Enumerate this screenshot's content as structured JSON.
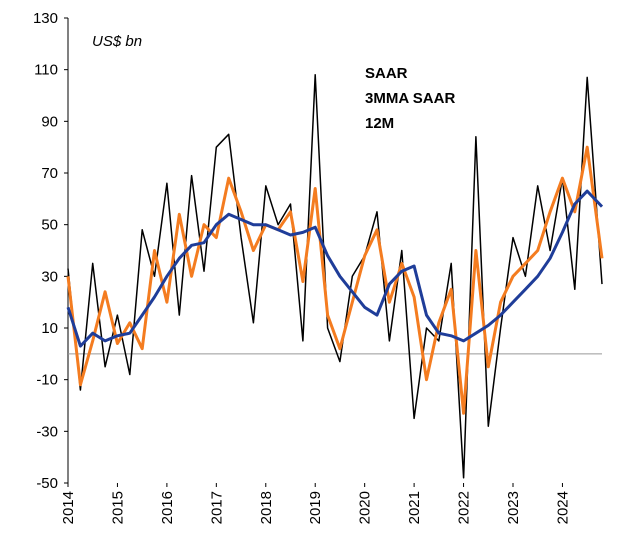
{
  "chart_data": {
    "type": "line",
    "annotation": "US$ bn",
    "x": [
      2014,
      2014.25,
      2014.5,
      2014.75,
      2015,
      2015.25,
      2015.5,
      2015.75,
      2016,
      2016.25,
      2016.5,
      2016.75,
      2017,
      2017.25,
      2017.5,
      2017.75,
      2018,
      2018.25,
      2018.5,
      2018.75,
      2019,
      2019.25,
      2019.5,
      2019.75,
      2020,
      2020.25,
      2020.5,
      2020.75,
      2021,
      2021.25,
      2021.5,
      2021.75,
      2022,
      2022.25,
      2022.5,
      2022.75,
      2023,
      2023.25,
      2023.5,
      2023.75,
      2024,
      2024.25,
      2024.5,
      2024.8
    ],
    "series": [
      {
        "name": "SAAR",
        "color": "#000000",
        "width": 1.5,
        "values": [
          33,
          -14,
          35,
          -5,
          15,
          -8,
          48,
          30,
          66,
          15,
          69,
          32,
          80,
          85,
          45,
          12,
          65,
          50,
          58,
          5,
          108,
          10,
          -3,
          30,
          38,
          55,
          5,
          40,
          -25,
          10,
          5,
          35,
          -48,
          84,
          -28,
          10,
          45,
          30,
          65,
          40,
          68,
          25,
          107,
          27
        ]
      },
      {
        "name": "3MMA SAAR",
        "color": "#f47c20",
        "width": 3,
        "values": [
          30,
          -12,
          5,
          24,
          4,
          12,
          2,
          40,
          20,
          54,
          30,
          50,
          45,
          68,
          55,
          40,
          50,
          48,
          55,
          28,
          64,
          15,
          2,
          20,
          38,
          48,
          20,
          35,
          22,
          -10,
          12,
          25,
          -23,
          40,
          -5,
          20,
          30,
          35,
          40,
          55,
          68,
          55,
          80,
          37
        ]
      },
      {
        "name": "12M",
        "color": "#1f3d99",
        "width": 3,
        "values": [
          18,
          3,
          8,
          5,
          7,
          8,
          15,
          22,
          30,
          37,
          42,
          43,
          50,
          54,
          52,
          50,
          50,
          48,
          46,
          47,
          49,
          38,
          30,
          24,
          18,
          15,
          27,
          32,
          34,
          15,
          8,
          7,
          5,
          8,
          11,
          15,
          20,
          25,
          30,
          37,
          47,
          58,
          63,
          57
        ]
      }
    ],
    "xlim": [
      2014,
      2024.8
    ],
    "xticks": [
      2014,
      2015,
      2016,
      2017,
      2018,
      2019,
      2020,
      2021,
      2022,
      2023,
      2024
    ],
    "ylim": [
      -50,
      130
    ],
    "yticks": [
      -50,
      -30,
      -10,
      10,
      30,
      50,
      70,
      90,
      110,
      130
    ],
    "reference_line": 0,
    "grid": false
  }
}
